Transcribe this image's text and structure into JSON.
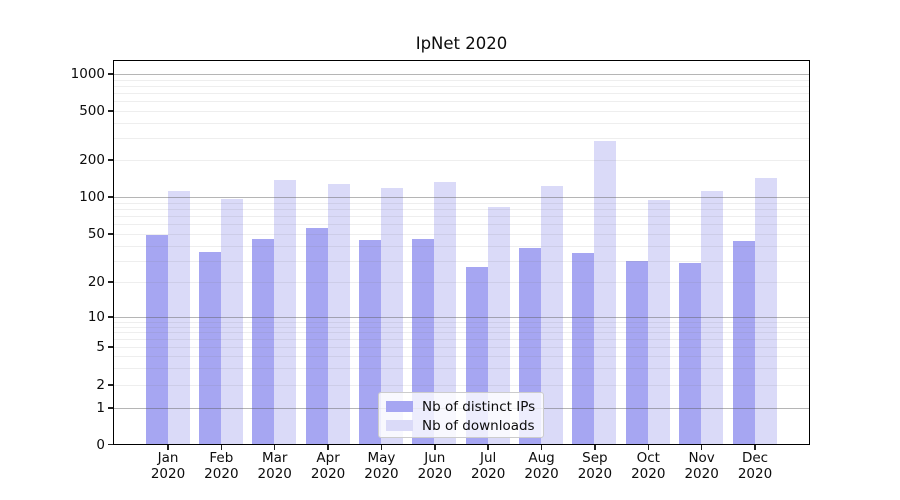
{
  "title": "IpNet 2020",
  "chart_data": {
    "type": "bar",
    "title": "IpNet 2020",
    "categories": [
      "Jan",
      "Feb",
      "Mar",
      "Apr",
      "May",
      "Jun",
      "Jul",
      "Aug",
      "Sep",
      "Oct",
      "Nov",
      "Dec"
    ],
    "category_sublabel": "2020",
    "series": [
      {
        "name": "Nb of distinct IPs",
        "color": "#a6a6f2",
        "values": [
          50,
          36,
          46,
          57,
          45,
          46,
          27,
          39,
          35,
          30,
          29,
          44
        ]
      },
      {
        "name": "Nb of downloads",
        "color": "#dadaf8",
        "values": [
          113,
          98,
          138,
          128,
          119,
          133,
          84,
          123,
          290,
          95,
          113,
          143
        ]
      }
    ],
    "yscale": "symlog",
    "ylim": [
      0,
      1300
    ],
    "yticks": [
      0,
      1,
      2,
      5,
      10,
      20,
      50,
      100,
      200,
      500,
      1000
    ],
    "grid": true,
    "legend_position": "lower center",
    "colors": {
      "major_grid": "#b9b9b9",
      "minor_grid": "#ececec",
      "axis": "#000000"
    }
  }
}
